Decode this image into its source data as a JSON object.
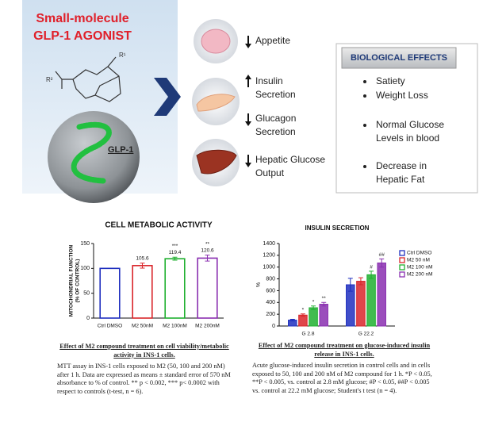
{
  "diagram": {
    "title": [
      "Small-molecule",
      "GLP-1 AGONIST"
    ],
    "molecule_labels": [
      "R¹",
      "R²"
    ],
    "receptor_label": "GLP-1",
    "effects": [
      {
        "direction": "down",
        "label": [
          "Appetite"
        ]
      },
      {
        "direction": "up",
        "label": [
          "Insulin",
          "Secretion"
        ]
      },
      {
        "direction": "down",
        "label": [
          "Glucagon",
          "Secretion"
        ]
      },
      {
        "direction": "down",
        "label": [
          "Hepatic Glucose",
          "Output"
        ]
      }
    ],
    "box_title": "BIOLOGICAL EFFECTS",
    "box_items": [
      [
        "Satiety"
      ],
      [
        "Weight Loss"
      ],
      [
        "Normal Glucose",
        "Levels in blood"
      ],
      [
        "Decrease in",
        "Hepatic Fat"
      ]
    ]
  },
  "chart_data": [
    {
      "type": "bar",
      "title": "CELL METABOLIC ACTIVITY",
      "ylabel": [
        "MITOCHONDRIAL FUNCTION",
        "(% OF CONTROL)"
      ],
      "categories": [
        "Ctrl DMSO",
        "M2 50nM",
        "M2 100nM",
        "M2 200nM"
      ],
      "values": [
        100,
        105.6,
        119.4,
        120.6
      ],
      "errors": [
        0,
        5,
        3,
        6
      ],
      "value_labels": [
        null,
        "105.6",
        "119.4",
        "120.6"
      ],
      "annotations": [
        null,
        null,
        "***",
        "**"
      ],
      "colors": [
        "#1f2fbf",
        "#d9262a",
        "#20b030",
        "#8a2fb0"
      ],
      "ylim": [
        0,
        150
      ],
      "yticks": [
        0,
        50,
        100,
        150
      ]
    },
    {
      "type": "grouped-bar",
      "title": "INSULIN SECRETION",
      "ylabel": "%",
      "categories": [
        "G 2.8",
        "G 22.2"
      ],
      "series": [
        {
          "name": "Ctrl DMSO",
          "color": "#1f2fbf",
          "values": [
            100,
            700
          ],
          "errors": [
            15,
            110
          ],
          "annotations": [
            null,
            null
          ]
        },
        {
          "name": "M2 50 nM",
          "color": "#d9262a",
          "values": [
            185,
            760
          ],
          "errors": [
            20,
            60
          ],
          "annotations": [
            "*",
            null
          ]
        },
        {
          "name": "M2 100 nM",
          "color": "#20b030",
          "values": [
            310,
            870
          ],
          "errors": [
            30,
            60
          ],
          "annotations": [
            "*",
            "#"
          ]
        },
        {
          "name": "M2 200 nM",
          "color": "#8a2fb0",
          "values": [
            370,
            1070
          ],
          "errors": [
            30,
            70
          ],
          "annotations": [
            "**",
            "##"
          ]
        }
      ],
      "legend": "right",
      "ylim": [
        0,
        1400
      ],
      "yticks": [
        0,
        200,
        400,
        600,
        800,
        1000,
        1200,
        1400
      ]
    }
  ],
  "captions": [
    {
      "title": "Effect of M2 compound treatment on cell viability/metabolic activity in INS-1 cells.",
      "text": "MTT assay in INS-1 cells exposed to M2 (50, 100 and 200 nM) after 1 h. Data are expressed as means ± standard error of 570 nM absorbance to % of control. ** p < 0.002, *** p< 0.0002 with respect to controls (t-test, n = 6)."
    },
    {
      "title": "Effect of M2 compound treatment on glucose-induced insulin release in INS-1 cells.",
      "text": "Acute glucose-induced insulin secretion in control cells and in cells exposed to 50, 100 and 200 nM of M2 compound for 1 h. *P < 0.05, **P < 0.005, vs. control at 2.8 mM glucose; #P < 0.05, ##P < 0.005 vs. control at 22.2 mM glucose; Student's t test (n = 4)."
    }
  ]
}
